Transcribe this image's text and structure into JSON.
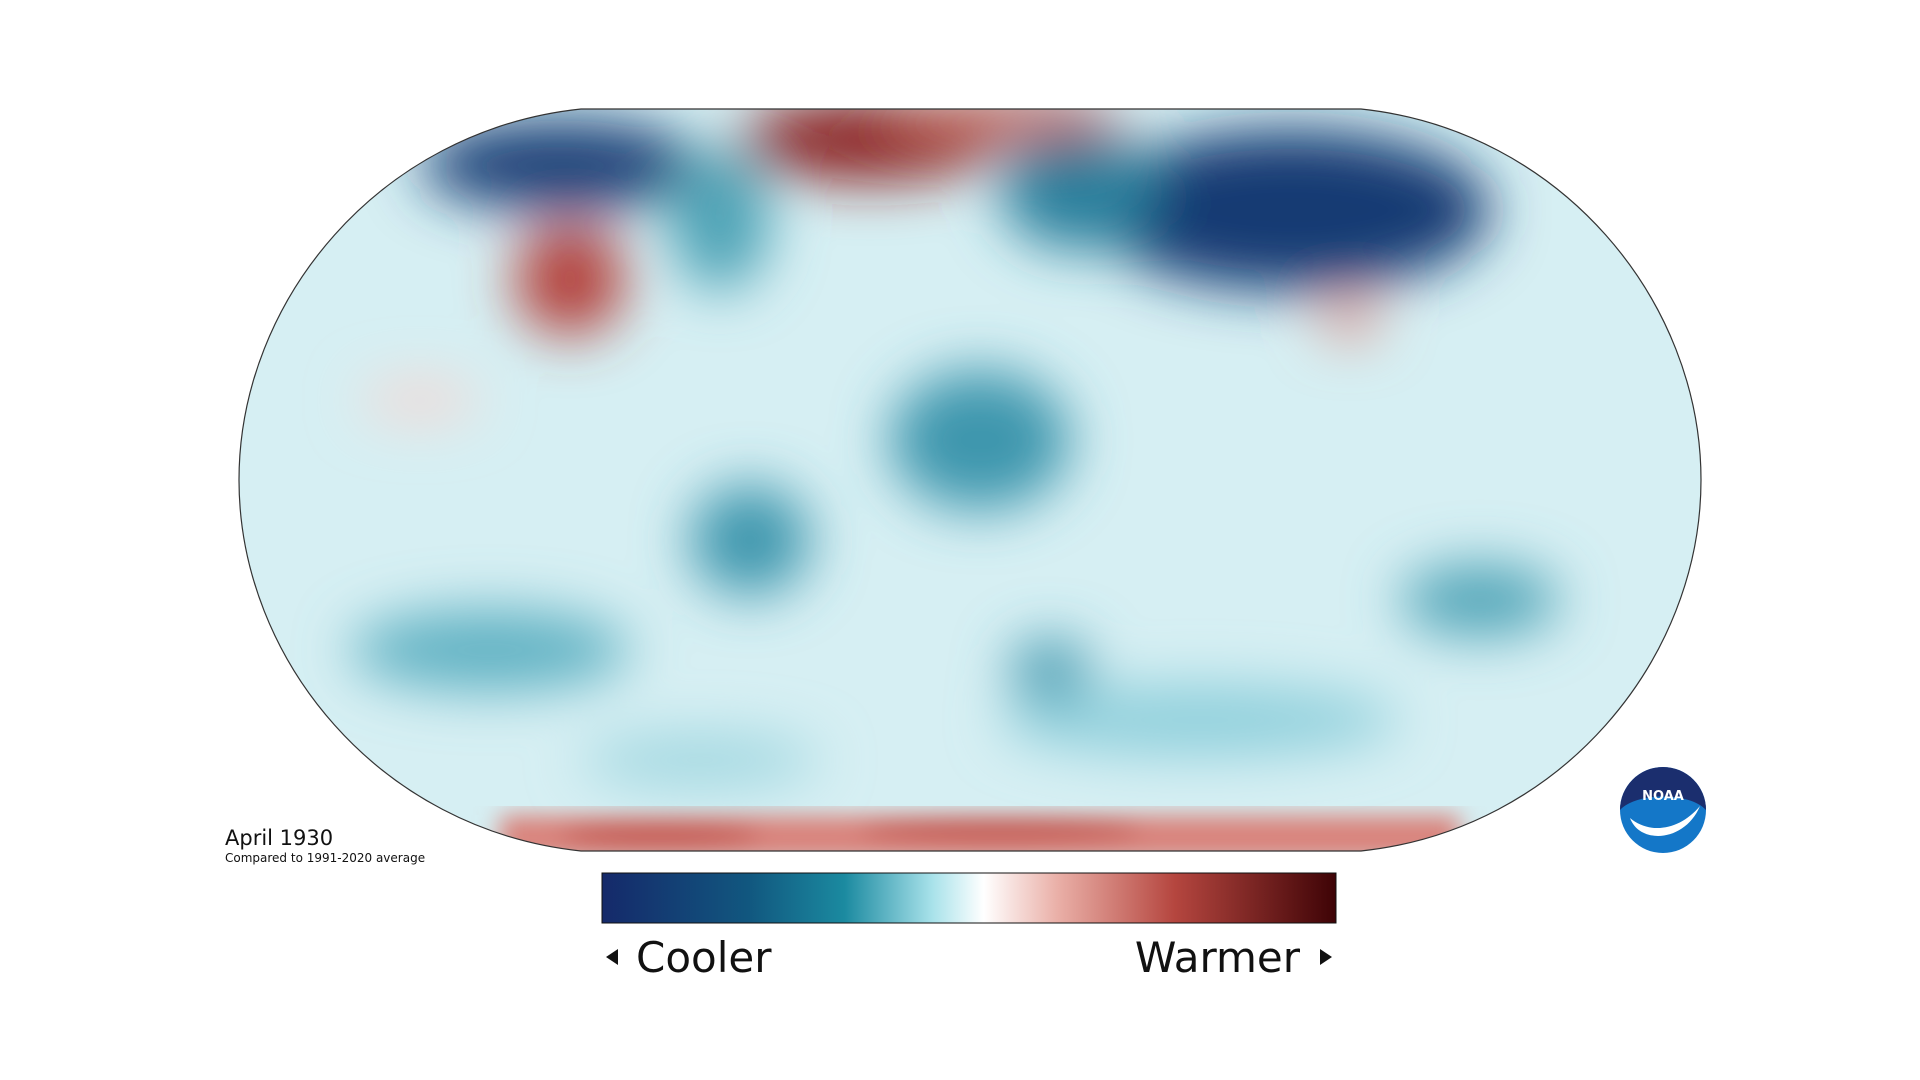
{
  "title": "April 1930",
  "subtitle": "Compared to 1991-2020 average",
  "legend": {
    "low": "Cooler",
    "high": "Warmer"
  },
  "logo": "NOAA"
}
